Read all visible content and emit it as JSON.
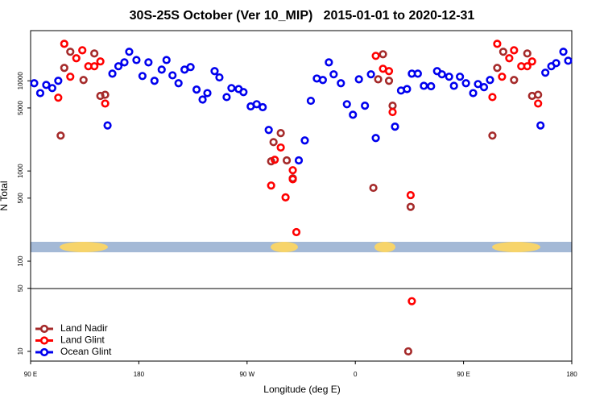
{
  "chart_data": {
    "type": "scatter",
    "title": "30S-25S October (Ver 10_MIP)   2015-01-01 to 2020-12-31",
    "x_label": "Longitude (deg E)",
    "y_label": "N Total",
    "xlim": [
      90,
      540
    ],
    "xticks": [
      {
        "value": 90,
        "label": "90 E"
      },
      {
        "value": 180,
        "label": "180"
      },
      {
        "value": 270,
        "label": "90 W"
      },
      {
        "value": 360,
        "label": "0"
      },
      {
        "value": 450,
        "label": "90 E"
      },
      {
        "value": 540,
        "label": "180"
      }
    ],
    "ylim": [
      7.8,
      36000
    ],
    "ylog": true,
    "yticks": [
      10,
      50,
      100,
      500,
      1000,
      5000,
      10000
    ],
    "legend": "bottom-left",
    "series": [
      {
        "name": "Land Nadir",
        "color": "#a52a2a",
        "x": [
          115,
          118,
          123,
          134,
          143,
          148,
          152,
          290,
          292,
          298,
          303,
          308,
          375,
          379,
          383,
          388,
          391,
          406,
          404,
          474,
          478,
          483,
          492,
          503,
          507,
          512
        ],
        "values": [
          2470,
          13900,
          21000,
          10200,
          20100,
          6800,
          7000,
          1280,
          2090,
          2630,
          1310,
          830,
          650,
          10400,
          19700,
          10000,
          5300,
          400,
          10,
          2470,
          13900,
          21000,
          10200,
          20100,
          6800,
          7000
        ]
      },
      {
        "name": "Land Glint",
        "color": "#ff0000",
        "x": [
          113,
          118,
          123,
          128,
          133,
          138,
          143,
          148,
          152,
          290,
          293,
          298,
          302,
          308,
          308,
          311,
          377,
          383,
          388,
          391,
          406,
          407,
          474,
          478,
          482,
          488,
          492,
          498,
          503,
          507,
          512
        ],
        "values": [
          6500,
          25700,
          11100,
          17800,
          21800,
          14500,
          14500,
          16400,
          5600,
          690,
          1330,
          1820,
          510,
          1020,
          810,
          210,
          18900,
          13600,
          12800,
          4500,
          540,
          36,
          6600,
          25700,
          11100,
          17800,
          21800,
          14500,
          14500,
          16400,
          5600
        ]
      },
      {
        "name": "Ocean Glint",
        "color": "#0000ee",
        "x": [
          93,
          98,
          103,
          108,
          113,
          154,
          158,
          163,
          168,
          172,
          178,
          183,
          188,
          193,
          199,
          203,
          208,
          213,
          218,
          223,
          228,
          233,
          237,
          243,
          247,
          253,
          257,
          263,
          267,
          273,
          278,
          283,
          288,
          313,
          318,
          323,
          328,
          333,
          338,
          342,
          348,
          353,
          358,
          363,
          368,
          373,
          377,
          393,
          398,
          403,
          407,
          412,
          417,
          423,
          428,
          432,
          438,
          442,
          447,
          452,
          458,
          462,
          467,
          472,
          514,
          518,
          523,
          527,
          533,
          537
        ],
        "values": [
          9400,
          7300,
          9000,
          8300,
          10000,
          3200,
          12000,
          14500,
          16000,
          21000,
          17000,
          11300,
          16000,
          10000,
          13300,
          17000,
          11500,
          9400,
          13300,
          14200,
          8000,
          6200,
          7300,
          12800,
          10900,
          6600,
          8300,
          8100,
          7500,
          5200,
          5500,
          5100,
          2850,
          1310,
          2180,
          6000,
          10600,
          10200,
          16000,
          11800,
          9400,
          5500,
          4200,
          10400,
          5300,
          11800,
          2320,
          3100,
          7800,
          8100,
          12000,
          12000,
          8800,
          8700,
          12800,
          11800,
          11100,
          8800,
          11100,
          9400,
          7300,
          9200,
          8500,
          10200,
          3200,
          12300,
          14500,
          15700,
          21000,
          16700
        ]
      }
    ]
  }
}
